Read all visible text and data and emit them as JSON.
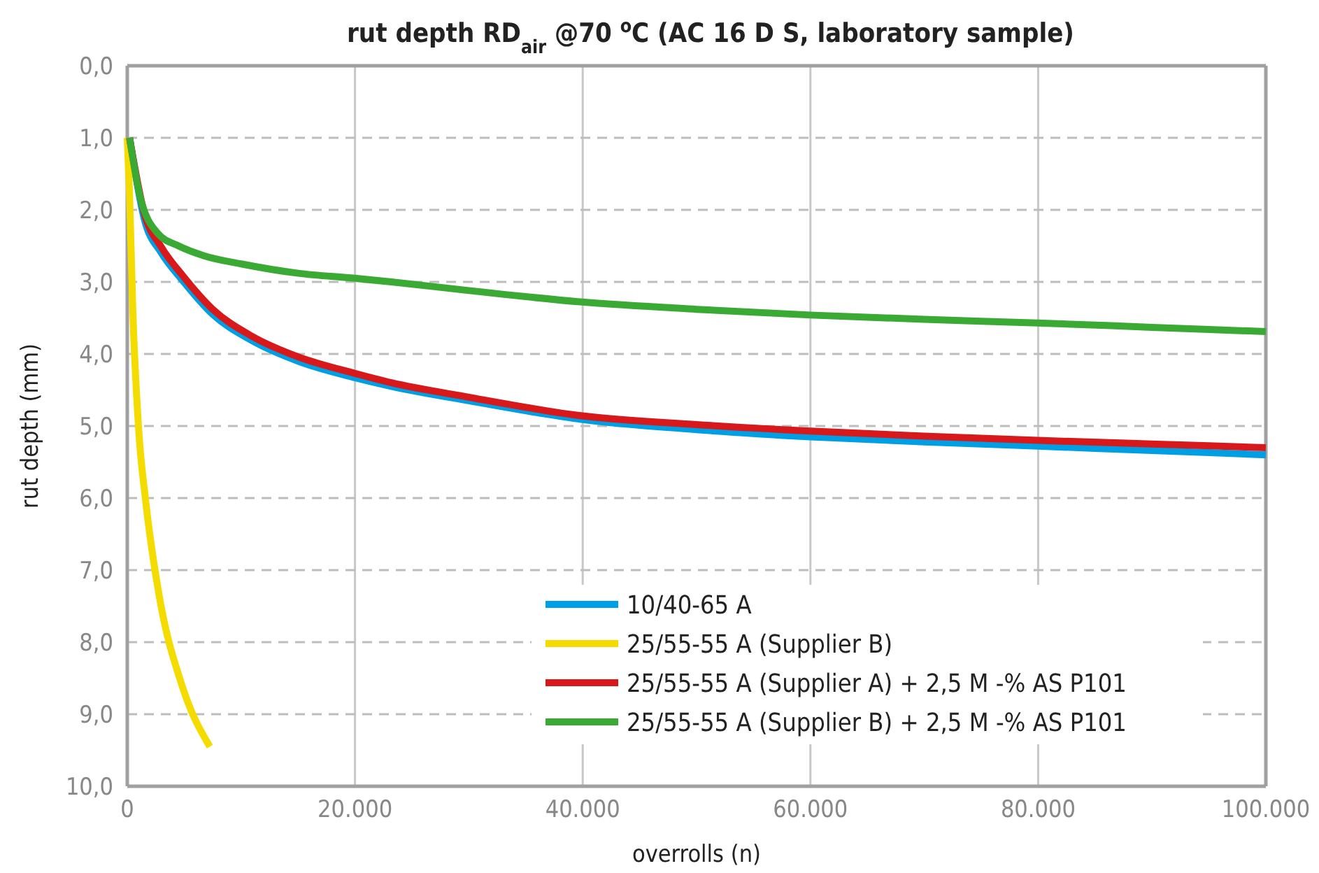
{
  "chart_data": {
    "type": "line",
    "title": "rut depth RD$_{air}$ @70 $^{o}$C (AC 16 D S, laboratory sample)",
    "xlabel": "overrolls (n)",
    "ylabel": "rut depth (mm)",
    "xlim": [
      0,
      100000
    ],
    "xticks": [
      {
        "value": 0,
        "label": "0"
      },
      {
        "value": 20000,
        "label": "20.000"
      },
      {
        "value": 40000,
        "label": "40.000"
      },
      {
        "value": 60000,
        "label": "60.000"
      },
      {
        "value": 80000,
        "label": "80.000"
      },
      {
        "value": 100000,
        "label": "100.000"
      }
    ],
    "ylim": [
      10,
      0
    ],
    "yticks": [
      {
        "value": 0,
        "label": "0,0"
      },
      {
        "value": 1,
        "label": "1,0"
      },
      {
        "value": 2,
        "label": "2,0"
      },
      {
        "value": 3,
        "label": "3,0"
      },
      {
        "value": 4,
        "label": "4,0"
      },
      {
        "value": 5,
        "label": "5,0"
      },
      {
        "value": 6,
        "label": "6,0"
      },
      {
        "value": 7,
        "label": "7,0"
      },
      {
        "value": 8,
        "label": "8,0"
      },
      {
        "value": 9,
        "label": "9,0"
      },
      {
        "value": 10,
        "label": "10,0"
      }
    ],
    "grid": true,
    "legend": "bottom right",
    "marker": "none",
    "line_style": "solid",
    "series": [
      {
        "name": "10/40-65 A",
        "color": "#009fe3",
        "x": [
          200,
          1500,
          3000,
          4800,
          7500,
          10900,
          15000,
          20000,
          23200,
          30000,
          40000,
          50000,
          60000,
          70000,
          80000,
          90000,
          100000
        ],
        "values": [
          1.0,
          2.13,
          2.6,
          2.97,
          3.45,
          3.81,
          4.1,
          4.33,
          4.45,
          4.65,
          4.91,
          5.05,
          5.15,
          5.22,
          5.28,
          5.34,
          5.4
        ]
      },
      {
        "name": "25/55-55 A (Supplier B)",
        "color": "#f5dc00",
        "x": [
          0,
          200,
          490,
          1000,
          1600,
          2740,
          4800,
          7250
        ],
        "values": [
          1.0,
          1.8,
          3.42,
          5.05,
          6.02,
          7.3,
          8.6,
          9.45
        ]
      },
      {
        "name": "25/55-55 A (Supplier A) + 2,5 M -% AS P101",
        "color": "#d7191c",
        "x": [
          200,
          1500,
          3000,
          4800,
          7500,
          10900,
          15000,
          20000,
          23200,
          30000,
          40000,
          50000,
          60000,
          70000,
          80000,
          90000,
          100000
        ],
        "values": [
          1.0,
          2.05,
          2.52,
          2.9,
          3.38,
          3.75,
          4.04,
          4.27,
          4.4,
          4.6,
          4.86,
          4.98,
          5.07,
          5.14,
          5.2,
          5.25,
          5.3
        ]
      },
      {
        "name": "25/55-55 A (Supplier B) + 2,5 M -% AS P101",
        "color": "#3aaa35",
        "x": [
          200,
          1100,
          2700,
          4500,
          6800,
          10000,
          15000,
          20000,
          23200,
          30000,
          40000,
          50000,
          60000,
          70000,
          80000,
          90000,
          100000
        ],
        "values": [
          1.0,
          1.8,
          2.33,
          2.5,
          2.64,
          2.75,
          2.88,
          2.95,
          3.0,
          3.12,
          3.28,
          3.38,
          3.46,
          3.52,
          3.57,
          3.63,
          3.69
        ]
      }
    ]
  }
}
